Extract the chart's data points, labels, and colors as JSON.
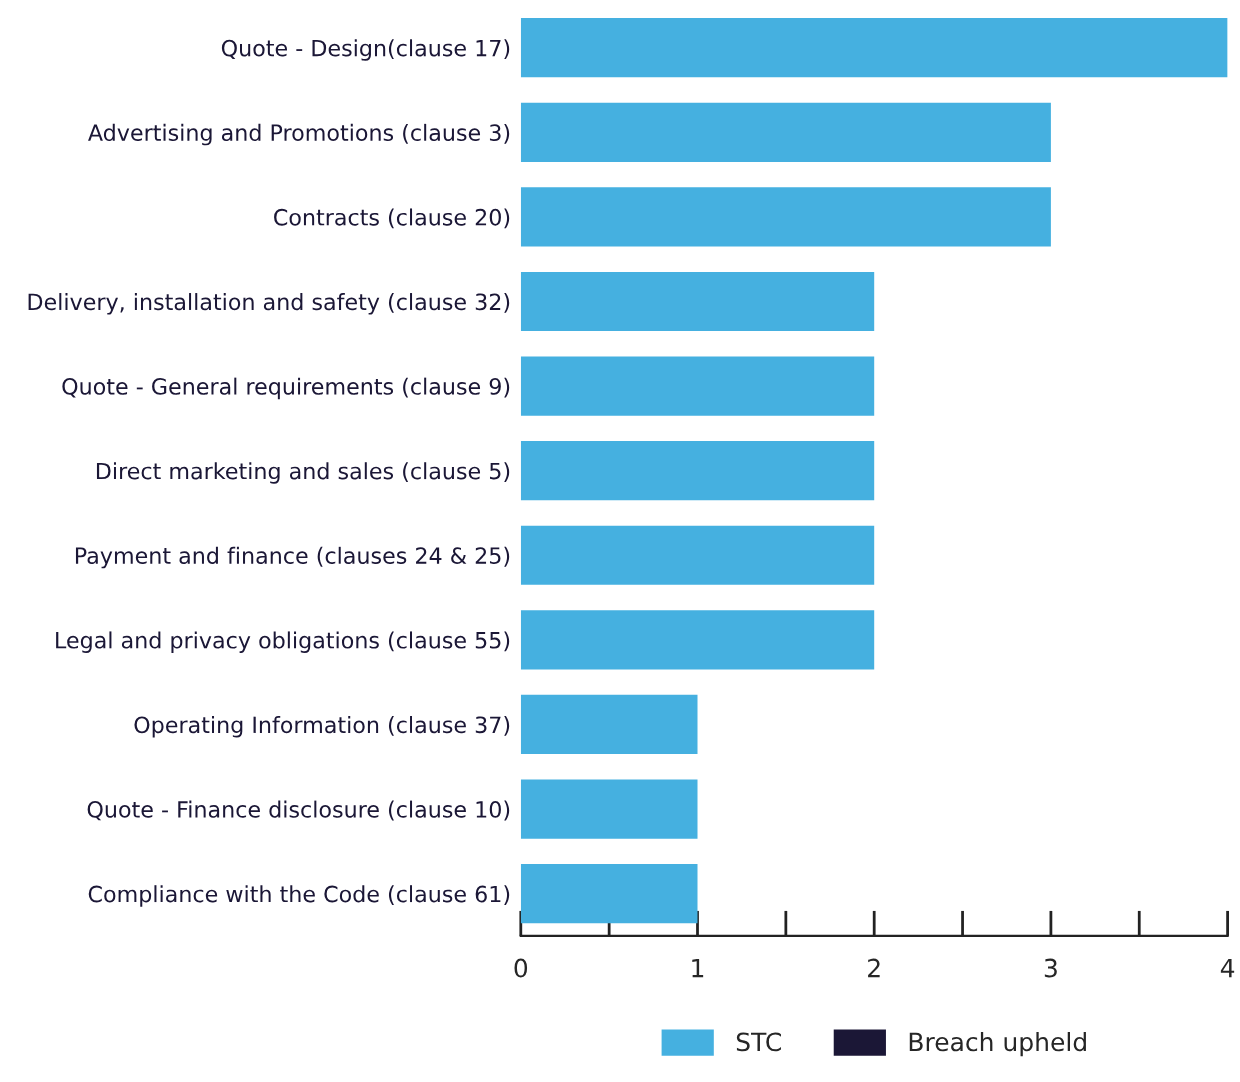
{
  "chart_data": {
    "type": "bar",
    "orientation": "horizontal",
    "categories": [
      "Quote - Design(clause 17)",
      "Advertising and Promotions (clause 3)",
      "Contracts (clause 20)",
      "Delivery, installation and safety (clause 32)",
      "Quote - General requirements (clause 9)",
      "Direct marketing and sales (clause 5)",
      "Payment and finance (clauses 24 & 25)",
      "Legal and privacy obligations (clause 55)",
      "Operating Information (clause 37)",
      "Quote - Finance disclosure (clause 10)",
      "Compliance with the Code (clause 61)"
    ],
    "series": [
      {
        "name": "STC",
        "color": "#45b0e0",
        "values": [
          4,
          3,
          3,
          2,
          2,
          2,
          2,
          2,
          1,
          1,
          1
        ]
      },
      {
        "name": "Breach upheld",
        "color": "#1b1736",
        "values": [
          0,
          0,
          0,
          0,
          0,
          0,
          0,
          0,
          0,
          0,
          0
        ]
      }
    ],
    "xlim": [
      0,
      4
    ],
    "xticks": [
      0,
      {
        "value": 0.5,
        "label": null
      },
      1,
      {
        "value": 1.5,
        "label": null
      },
      2,
      {
        "value": 2.5,
        "label": null
      },
      3,
      {
        "value": 3.5,
        "label": null
      },
      4
    ],
    "grid": false,
    "legend": "bottom"
  }
}
